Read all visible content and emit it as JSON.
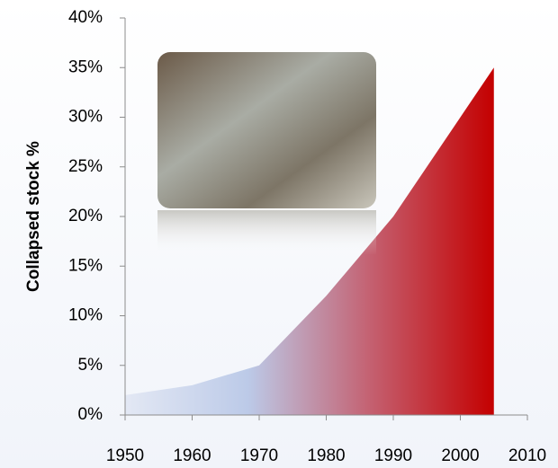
{
  "chart_data": {
    "type": "area",
    "ylabel": "Collapsed stock %",
    "x": [
      1950,
      1960,
      1970,
      1980,
      1990,
      2005
    ],
    "values": [
      2,
      3,
      5,
      12,
      20,
      35
    ],
    "gradient": [
      "#e3e8f4",
      "#bccae8",
      "#c46070",
      "#c40000"
    ],
    "xlim": [
      1950,
      2010
    ],
    "xticks": [
      1950,
      1960,
      1970,
      1980,
      1990,
      2000,
      2010
    ],
    "ylim": [
      0,
      40
    ],
    "yticks": [
      {
        "value": 0,
        "label": "0%"
      },
      {
        "value": 5,
        "label": "5%"
      },
      {
        "value": 10,
        "label": "10%"
      },
      {
        "value": 15,
        "label": "15%"
      },
      {
        "value": 20,
        "label": "20%"
      },
      {
        "value": 25,
        "label": "25%"
      },
      {
        "value": 30,
        "label": "30%"
      },
      {
        "value": 35,
        "label": "35%"
      },
      {
        "value": 40,
        "label": "40%"
      }
    ]
  }
}
